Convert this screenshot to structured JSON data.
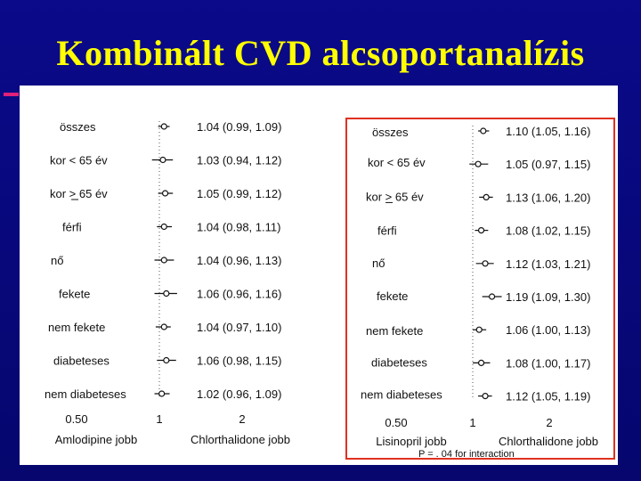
{
  "title": "Kombinált CVD alcsoportanalízis",
  "colors": {
    "background": "#0a0a8a",
    "title": "#ffff00",
    "accent": "#e0207a",
    "box": "#e03020"
  },
  "left_plot": {
    "rows": [
      {
        "label": "összes",
        "ci": "1.04  (0.99, 1.09)",
        "est": 1.04,
        "lo": 0.99,
        "hi": 1.09
      },
      {
        "label": "kor < 65 év",
        "ci": "1.03  (0.94, 1.12)",
        "est": 1.03,
        "lo": 0.94,
        "hi": 1.12
      },
      {
        "label": "kor > 65 év",
        "ci": "1.05  (0.99, 1.12)",
        "est": 1.05,
        "lo": 0.99,
        "hi": 1.12
      },
      {
        "label": "férfi",
        "ci": "1.04  (0.98, 1.11)",
        "est": 1.04,
        "lo": 0.98,
        "hi": 1.11
      },
      {
        "label": "nő",
        "ci": "1.04  (0.96, 1.13)",
        "est": 1.04,
        "lo": 0.96,
        "hi": 1.13
      },
      {
        "label": "fekete",
        "ci": "1.06  (0.96, 1.16)",
        "est": 1.06,
        "lo": 0.96,
        "hi": 1.16
      },
      {
        "label": "nem  fekete",
        "ci": "1.04  (0.97, 1.10)",
        "est": 1.04,
        "lo": 0.97,
        "hi": 1.1
      },
      {
        "label": "diabeteses",
        "ci": "1.06  (0.98, 1.15)",
        "est": 1.06,
        "lo": 0.98,
        "hi": 1.15
      },
      {
        "label": "nem diabeteses",
        "ci": "1.02  (0.96, 1.09)",
        "est": 1.02,
        "lo": 0.96,
        "hi": 1.09
      }
    ],
    "axis_ticks": [
      "0.50",
      "1",
      "2"
    ],
    "left_label": "Amlodipine jobb",
    "right_label": "Chlorthalidone jobb"
  },
  "right_plot": {
    "rows": [
      {
        "label": "összes",
        "ci": "1.10  (1.05, 1.16)",
        "est": 1.1,
        "lo": 1.05,
        "hi": 1.16
      },
      {
        "label": "kor < 65 év",
        "ci": "1.05  (0.97, 1.15)",
        "est": 1.05,
        "lo": 0.97,
        "hi": 1.15
      },
      {
        "label": "kor > 65 év",
        "ci": "1.13  (1.06, 1.20)",
        "est": 1.13,
        "lo": 1.06,
        "hi": 1.2
      },
      {
        "label": "férfi",
        "ci": "1.08  (1.02, 1.15)",
        "est": 1.08,
        "lo": 1.02,
        "hi": 1.15
      },
      {
        "label": "nő",
        "ci": "1.12  (1.03, 1.21)",
        "est": 1.12,
        "lo": 1.03,
        "hi": 1.21
      },
      {
        "label": "fekete",
        "ci": "1.19  (1.09, 1.30)",
        "est": 1.19,
        "lo": 1.09,
        "hi": 1.3
      },
      {
        "label": "nem fekete",
        "ci": "1.06  (1.00, 1.13)",
        "est": 1.06,
        "lo": 1.0,
        "hi": 1.13
      },
      {
        "label": "diabeteses",
        "ci": "1.08  (1.00, 1.17)",
        "est": 1.08,
        "lo": 1.0,
        "hi": 1.17
      },
      {
        "label": "nem diabeteses",
        "ci": "1.12  (1.05, 1.19)",
        "est": 1.12,
        "lo": 1.05,
        "hi": 1.19
      }
    ],
    "axis_ticks": [
      "0.50",
      "1",
      "2"
    ],
    "left_label": "Lisinopril jobb",
    "right_label": "Chlorthalidone jobb",
    "note": "P = . 04 for interaction"
  }
}
